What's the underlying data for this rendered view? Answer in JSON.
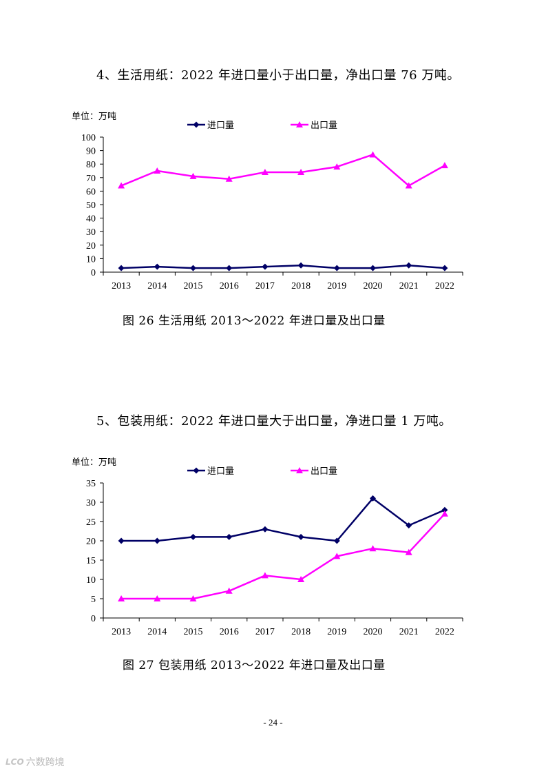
{
  "sections": [
    {
      "heading": "4、生活用纸：2022 年进口量小于出口量，净出口量 76 万吨。",
      "caption": "图 26   生活用纸 2013～2022 年进口量及出口量"
    },
    {
      "heading": "5、包装用纸：2022 年进口量大于出口量，净进口量 1 万吨。",
      "caption": "图 27   包装用纸 2013～2022 年进口量及出口量"
    }
  ],
  "chart_data": [
    {
      "type": "line",
      "title": "生活用纸 2013～2022 年进口量及出口量",
      "unit_label": "单位：万吨",
      "categories": [
        "2013",
        "2014",
        "2015",
        "2016",
        "2017",
        "2018",
        "2019",
        "2020",
        "2021",
        "2022"
      ],
      "series": [
        {
          "name": "进口量",
          "color": "#000066",
          "marker": "diamond",
          "values": [
            3,
            4,
            3,
            3,
            4,
            5,
            3,
            3,
            5,
            3
          ]
        },
        {
          "name": "出口量",
          "color": "#ff00ff",
          "marker": "triangle",
          "values": [
            64,
            75,
            71,
            69,
            74,
            74,
            78,
            87,
            64,
            79
          ]
        }
      ],
      "ylim": [
        0,
        100
      ],
      "yticks": [
        0,
        10,
        20,
        30,
        40,
        50,
        60,
        70,
        80,
        90,
        100
      ],
      "legend": "top-center",
      "grid": false
    },
    {
      "type": "line",
      "title": "包装用纸 2013～2022 年进口量及出口量",
      "unit_label": "单位：万吨",
      "categories": [
        "2013",
        "2014",
        "2015",
        "2016",
        "2017",
        "2018",
        "2019",
        "2020",
        "2021",
        "2022"
      ],
      "series": [
        {
          "name": "进口量",
          "color": "#000066",
          "marker": "diamond",
          "values": [
            20,
            20,
            21,
            21,
            23,
            21,
            20,
            31,
            24,
            28
          ]
        },
        {
          "name": "出口量",
          "color": "#ff00ff",
          "marker": "triangle",
          "values": [
            5,
            5,
            5,
            7,
            11,
            10,
            16,
            18,
            17,
            27
          ]
        }
      ],
      "ylim": [
        0,
        35
      ],
      "yticks": [
        0,
        5,
        10,
        15,
        20,
        25,
        30,
        35
      ],
      "legend": "top-center",
      "grid": false
    }
  ],
  "footer": {
    "page_number": "- 24 -",
    "watermark_logo": "LCO",
    "watermark_text": "六数跨境"
  }
}
